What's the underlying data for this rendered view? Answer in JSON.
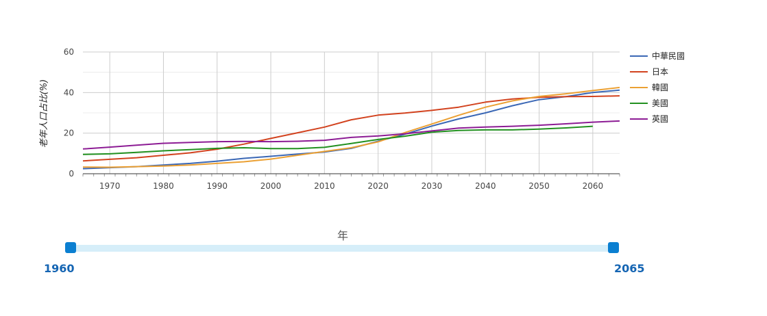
{
  "chart_data": {
    "type": "line",
    "ylabel": "老年人口占比(%)",
    "ylim": [
      0,
      60
    ],
    "yticks": [
      0,
      20,
      40,
      60
    ],
    "xlim": [
      1965,
      2065
    ],
    "xticks": [
      1970,
      1980,
      1990,
      2000,
      2010,
      2020,
      2030,
      2040,
      2050,
      2060
    ],
    "grid": true,
    "legend_position": "right",
    "series": [
      {
        "name": "中華民國",
        "color": "#3a67b5",
        "x": [
          1965,
          1970,
          1975,
          1980,
          1985,
          1990,
          1995,
          2000,
          2005,
          2010,
          2015,
          2020,
          2025,
          2030,
          2035,
          2040,
          2045,
          2050,
          2055,
          2060,
          2065
        ],
        "y": [
          2.5,
          3.0,
          3.5,
          4.3,
          5.1,
          6.2,
          7.6,
          8.6,
          9.7,
          10.7,
          12.5,
          16.0,
          19.5,
          23.5,
          27.0,
          30.0,
          33.5,
          36.5,
          38.0,
          40.0,
          41.2
        ]
      },
      {
        "name": "日本",
        "color": "#d2421e",
        "x": [
          1965,
          1970,
          1975,
          1980,
          1985,
          1990,
          1995,
          2000,
          2005,
          2010,
          2015,
          2020,
          2025,
          2030,
          2035,
          2040,
          2045,
          2050,
          2055,
          2060,
          2065
        ],
        "y": [
          6.3,
          7.1,
          7.9,
          9.1,
          10.3,
          12.1,
          14.6,
          17.4,
          20.2,
          23.0,
          26.6,
          28.9,
          29.9,
          31.2,
          32.8,
          35.3,
          36.8,
          37.7,
          38.0,
          38.1,
          38.4
        ]
      },
      {
        "name": "韓國",
        "color": "#eba033",
        "x": [
          1965,
          1970,
          1975,
          1980,
          1985,
          1990,
          1995,
          2000,
          2005,
          2010,
          2015,
          2020,
          2025,
          2030,
          2035,
          2040,
          2045,
          2050,
          2055,
          2060,
          2065
        ],
        "y": [
          3.3,
          3.2,
          3.5,
          3.8,
          4.3,
          5.1,
          5.9,
          7.2,
          9.1,
          11.0,
          12.8,
          15.7,
          20.3,
          24.5,
          28.8,
          32.8,
          35.9,
          38.1,
          39.4,
          41.0,
          42.5
        ]
      },
      {
        "name": "美國",
        "color": "#21901f",
        "x": [
          1965,
          1970,
          1975,
          1980,
          1985,
          1990,
          1995,
          2000,
          2005,
          2010,
          2015,
          2020,
          2025,
          2030,
          2035,
          2040,
          2045,
          2050,
          2055,
          2060
        ],
        "y": [
          9.5,
          9.8,
          10.5,
          11.3,
          11.9,
          12.5,
          12.8,
          12.4,
          12.4,
          13.0,
          14.9,
          16.9,
          18.5,
          20.5,
          21.3,
          21.6,
          21.6,
          22.0,
          22.6,
          23.4
        ]
      },
      {
        "name": "英國",
        "color": "#8c1b94",
        "x": [
          1965,
          1970,
          1975,
          1980,
          1985,
          1990,
          1995,
          2000,
          2005,
          2010,
          2015,
          2020,
          2025,
          2030,
          2035,
          2040,
          2045,
          2050,
          2055,
          2060,
          2065
        ],
        "y": [
          12.2,
          13.1,
          14.1,
          15.0,
          15.4,
          15.8,
          15.9,
          15.8,
          16.0,
          16.5,
          17.9,
          18.6,
          19.7,
          21.1,
          22.5,
          23.0,
          23.4,
          23.9,
          24.6,
          25.4,
          26.0
        ]
      }
    ]
  },
  "slider": {
    "title": "年",
    "min_label": "1960",
    "max_label": "2065"
  },
  "colors": {
    "slider_handle": "#0b7fd1",
    "slider_track": "#d6eef9",
    "slider_value_text": "#1565b3"
  }
}
